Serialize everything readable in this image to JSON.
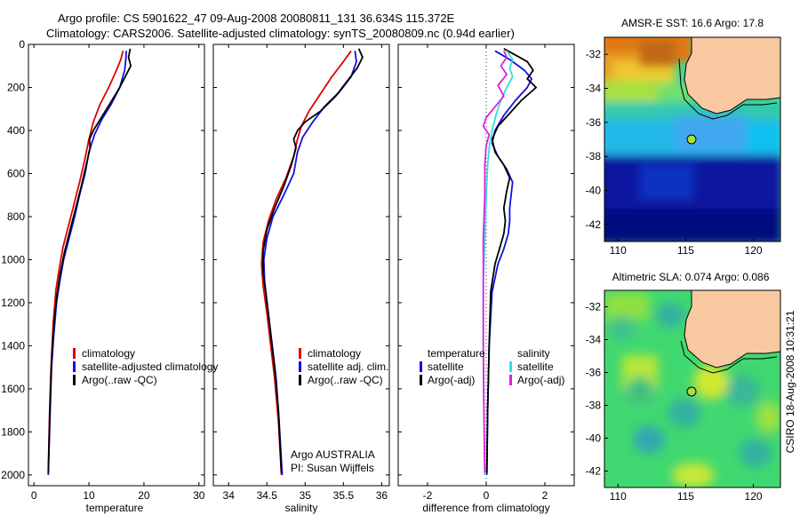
{
  "header": {
    "title_line1": "Argo profile: CS 5901622_47 09-Aug-2008 20080811_131 36.634S 115.372E",
    "title_line2": "Climatology: CARS2006. Satellite-adjusted climatology: synTS_20080809.nc (0.94d earlier)"
  },
  "side_stamp": "CSIRO 18-Aug-2008 10:31:21",
  "colors": {
    "climatology": "#e00000",
    "satellite": "#1010e0",
    "argo": "#000000",
    "sal_diff_satellite": "#30e0e0",
    "sal_diff_argo": "#e020e0",
    "land": "#f8c8a0"
  },
  "chart_data": [
    {
      "type": "line",
      "name": "temperature-profile",
      "xlabel": "temperature",
      "xlim": [
        -1,
        31
      ],
      "xticks": [
        0,
        10,
        20,
        30
      ],
      "ylim": [
        2050,
        0
      ],
      "yticks": [
        0,
        200,
        400,
        600,
        800,
        1000,
        1200,
        1400,
        1600,
        1800,
        2000
      ],
      "legend": [
        "climatology",
        "satellite-adjusted climatology",
        "Argo(..raw -QC)"
      ],
      "series": [
        {
          "name": "climatology",
          "color": "climatology",
          "points": [
            [
              16.2,
              30
            ],
            [
              15.8,
              70
            ],
            [
              15.0,
              120
            ],
            [
              13.6,
              200
            ],
            [
              12.0,
              280
            ],
            [
              10.8,
              360
            ],
            [
              10.0,
              440
            ],
            [
              9.2,
              540
            ],
            [
              8.3,
              640
            ],
            [
              7.3,
              740
            ],
            [
              6.3,
              840
            ],
            [
              5.3,
              940
            ],
            [
              4.6,
              1040
            ],
            [
              4.0,
              1140
            ],
            [
              3.5,
              1300
            ],
            [
              3.1,
              1500
            ],
            [
              2.8,
              1750
            ],
            [
              2.6,
              2000
            ]
          ]
        },
        {
          "name": "satellite-adjusted climatology",
          "color": "satellite",
          "points": [
            [
              16.8,
              30
            ],
            [
              16.7,
              70
            ],
            [
              16.5,
              120
            ],
            [
              15.6,
              200
            ],
            [
              14.0,
              280
            ],
            [
              12.3,
              350
            ],
            [
              11.0,
              420
            ],
            [
              10.0,
              500
            ],
            [
              9.3,
              600
            ],
            [
              8.3,
              700
            ],
            [
              7.4,
              800
            ],
            [
              6.4,
              900
            ],
            [
              5.4,
              1000
            ],
            [
              4.7,
              1100
            ],
            [
              4.1,
              1200
            ],
            [
              3.6,
              1350
            ],
            [
              3.2,
              1500
            ],
            [
              2.9,
              1750
            ],
            [
              2.6,
              2000
            ]
          ]
        },
        {
          "name": "Argo(..raw -QC)",
          "color": "argo",
          "points": [
            [
              17.5,
              20
            ],
            [
              17.2,
              60
            ],
            [
              17.6,
              100
            ],
            [
              16.6,
              150
            ],
            [
              15.6,
              200
            ],
            [
              14.2,
              260
            ],
            [
              12.5,
              330
            ],
            [
              10.8,
              400
            ],
            [
              10.1,
              440
            ],
            [
              10.2,
              480
            ],
            [
              9.5,
              560
            ],
            [
              8.6,
              660
            ],
            [
              7.6,
              760
            ],
            [
              6.6,
              860
            ],
            [
              5.6,
              960
            ],
            [
              4.8,
              1060
            ],
            [
              4.2,
              1160
            ],
            [
              3.7,
              1280
            ],
            [
              3.3,
              1420
            ],
            [
              3.0,
              1600
            ],
            [
              2.8,
              1800
            ],
            [
              2.6,
              1990
            ]
          ]
        }
      ]
    },
    {
      "type": "line",
      "name": "salinity-profile",
      "xlabel": "salinity",
      "xlim": [
        33.8,
        36.1
      ],
      "xticks": [
        34,
        34.5,
        35,
        35.5,
        36
      ],
      "ylim": [
        2050,
        0
      ],
      "legend": [
        "climatology",
        "satellite adj. clim.",
        "Argo(..raw -QC)"
      ],
      "annotation": [
        "Argo AUSTRALIA",
        "PI: Susan Wijffels"
      ],
      "series": [
        {
          "name": "climatology",
          "color": "climatology",
          "points": [
            [
              35.6,
              30
            ],
            [
              35.5,
              80
            ],
            [
              35.35,
              150
            ],
            [
              35.2,
              230
            ],
            [
              35.05,
              310
            ],
            [
              34.95,
              380
            ],
            [
              34.9,
              440
            ],
            [
              34.85,
              520
            ],
            [
              34.75,
              620
            ],
            [
              34.62,
              720
            ],
            [
              34.52,
              820
            ],
            [
              34.45,
              920
            ],
            [
              34.43,
              1020
            ],
            [
              34.45,
              1120
            ],
            [
              34.5,
              1250
            ],
            [
              34.55,
              1400
            ],
            [
              34.6,
              1550
            ],
            [
              34.65,
              1750
            ],
            [
              34.69,
              2000
            ]
          ]
        },
        {
          "name": "satellite adj. clim.",
          "color": "satellite",
          "points": [
            [
              35.65,
              30
            ],
            [
              35.67,
              80
            ],
            [
              35.6,
              150
            ],
            [
              35.45,
              220
            ],
            [
              35.25,
              290
            ],
            [
              35.1,
              360
            ],
            [
              34.97,
              430
            ],
            [
              34.9,
              500
            ],
            [
              34.85,
              600
            ],
            [
              34.72,
              700
            ],
            [
              34.58,
              800
            ],
            [
              34.5,
              900
            ],
            [
              34.46,
              1000
            ],
            [
              34.47,
              1100
            ],
            [
              34.52,
              1250
            ],
            [
              34.57,
              1400
            ],
            [
              34.62,
              1550
            ],
            [
              34.66,
              1750
            ],
            [
              34.7,
              2000
            ]
          ]
        },
        {
          "name": "Argo(..raw -QC)",
          "color": "argo",
          "points": [
            [
              35.7,
              20
            ],
            [
              35.75,
              60
            ],
            [
              35.68,
              110
            ],
            [
              35.55,
              170
            ],
            [
              35.4,
              240
            ],
            [
              35.2,
              310
            ],
            [
              35.0,
              360
            ],
            [
              34.9,
              400
            ],
            [
              34.85,
              440
            ],
            [
              34.88,
              480
            ],
            [
              34.82,
              560
            ],
            [
              34.72,
              660
            ],
            [
              34.6,
              760
            ],
            [
              34.5,
              860
            ],
            [
              34.45,
              960
            ],
            [
              34.45,
              1060
            ],
            [
              34.5,
              1200
            ],
            [
              34.55,
              1350
            ],
            [
              34.6,
              1500
            ],
            [
              34.65,
              1700
            ],
            [
              34.69,
              1990
            ]
          ]
        }
      ]
    },
    {
      "type": "line",
      "name": "difference-profile",
      "xlabel": "difference from climatology",
      "xlim": [
        -3,
        3
      ],
      "xticks": [
        -2,
        0,
        2
      ],
      "ylim": [
        2050,
        0
      ],
      "legend_left_header": "temperature",
      "legend_right_header": "salinity",
      "legend_left": [
        "satellite",
        "Argo(-adj)"
      ],
      "legend_right": [
        "satellite",
        "Argo(-adj)"
      ],
      "series": [
        {
          "name": "temperature satellite",
          "color": "satellite",
          "points": [
            [
              0.3,
              30
            ],
            [
              0.8,
              70
            ],
            [
              1.3,
              120
            ],
            [
              1.55,
              160
            ],
            [
              1.4,
              200
            ],
            [
              1.0,
              260
            ],
            [
              0.6,
              330
            ],
            [
              0.3,
              400
            ],
            [
              0.2,
              460
            ],
            [
              0.4,
              520
            ],
            [
              0.7,
              580
            ],
            [
              0.9,
              640
            ],
            [
              0.85,
              700
            ],
            [
              0.8,
              760
            ],
            [
              0.8,
              820
            ],
            [
              0.75,
              880
            ],
            [
              0.6,
              950
            ],
            [
              0.4,
              1020
            ],
            [
              0.2,
              1150
            ],
            [
              0.1,
              1400
            ],
            [
              0.05,
              1700
            ],
            [
              0.02,
              2000
            ]
          ]
        },
        {
          "name": "temperature Argo(-adj)",
          "color": "argo",
          "points": [
            [
              0.6,
              20
            ],
            [
              1.0,
              50
            ],
            [
              1.4,
              80
            ],
            [
              1.6,
              120
            ],
            [
              1.4,
              160
            ],
            [
              1.7,
              200
            ],
            [
              1.2,
              260
            ],
            [
              0.8,
              320
            ],
            [
              0.4,
              380
            ],
            [
              0.2,
              440
            ],
            [
              0.3,
              500
            ],
            [
              0.6,
              560
            ],
            [
              0.8,
              620
            ],
            [
              0.7,
              680
            ],
            [
              0.6,
              760
            ],
            [
              0.65,
              820
            ],
            [
              0.6,
              880
            ],
            [
              0.45,
              950
            ],
            [
              0.3,
              1020
            ],
            [
              0.15,
              1150
            ],
            [
              0.1,
              1400
            ],
            [
              0.05,
              1700
            ],
            [
              0.02,
              1990
            ]
          ]
        },
        {
          "name": "salinity satellite",
          "color": "sal_diff_satellite",
          "points": [
            [
              0.7,
              30
            ],
            [
              0.9,
              70
            ],
            [
              0.8,
              110
            ],
            [
              0.9,
              150
            ],
            [
              0.7,
              200
            ],
            [
              0.5,
              260
            ],
            [
              0.35,
              320
            ],
            [
              0.2,
              400
            ],
            [
              0.1,
              480
            ],
            [
              0.05,
              560
            ],
            [
              0.0,
              700
            ],
            [
              -0.05,
              900
            ],
            [
              -0.1,
              1100
            ],
            [
              -0.1,
              1400
            ],
            [
              -0.08,
              1700
            ],
            [
              -0.05,
              2000
            ]
          ]
        },
        {
          "name": "salinity Argo(-adj)",
          "color": "sal_diff_argo",
          "points": [
            [
              0.6,
              30
            ],
            [
              0.7,
              60
            ],
            [
              0.5,
              100
            ],
            [
              0.7,
              140
            ],
            [
              0.4,
              190
            ],
            [
              0.6,
              240
            ],
            [
              0.3,
              290
            ],
            [
              0.0,
              340
            ],
            [
              -0.1,
              380
            ],
            [
              0.1,
              420
            ],
            [
              0.0,
              470
            ],
            [
              -0.05,
              560
            ],
            [
              -0.05,
              700
            ],
            [
              -0.1,
              900
            ],
            [
              -0.1,
              1100
            ],
            [
              -0.1,
              1400
            ],
            [
              -0.08,
              1700
            ],
            [
              -0.05,
              1990
            ]
          ]
        }
      ]
    },
    {
      "type": "heatmap",
      "name": "sst-map",
      "title": "AMSR-E SST: 16.6 Argo: 17.8",
      "xlim": [
        109,
        122
      ],
      "ylim": [
        -43,
        -31
      ],
      "xticks": [
        110,
        115,
        120
      ],
      "yticks": [
        -32,
        -34,
        -36,
        -38,
        -40,
        -42
      ],
      "argo_position": [
        115.37,
        -36.63
      ]
    },
    {
      "type": "heatmap",
      "name": "sla-map",
      "title": "Altimetric SLA: 0.074 Argo: 0.086",
      "xlim": [
        109,
        122
      ],
      "ylim": [
        -43,
        -31
      ],
      "xticks": [
        110,
        115,
        120
      ],
      "yticks": [
        -32,
        -34,
        -36,
        -38,
        -40,
        -42
      ],
      "argo_position": [
        115.37,
        -36.63
      ]
    }
  ]
}
